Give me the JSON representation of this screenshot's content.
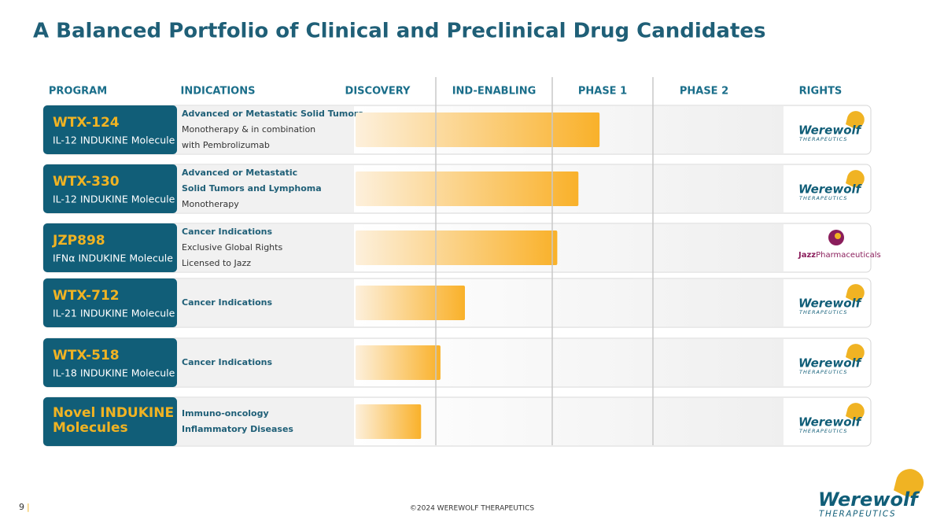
{
  "header": {
    "title": "A Balanced Portfolio of Clinical and Preclinical Drug Candidates"
  },
  "columns": [
    "PROGRAM",
    "INDICATIONS",
    "DISCOVERY",
    "IND-ENABLING",
    "PHASE 1",
    "PHASE 2",
    "RIGHTS"
  ],
  "rows": [
    {
      "name": [
        "WTX-124"
      ],
      "sub": "IL-12 INDUKINE Molecule",
      "indications": [
        {
          "text": "Advanced or Metastatic Solid Tumors",
          "bold": true
        },
        {
          "text": "Monotherapy & in combination",
          "bold": false
        },
        {
          "text": "with Pembrolizumab",
          "bold": false
        }
      ],
      "progress": 2.47,
      "rights": {
        "logo": "werewolf",
        "name": "Werewolf",
        "sub": "THERAPEUTICS"
      }
    },
    {
      "name": [
        "WTX-330"
      ],
      "sub": "IL-12 INDUKINE Molecule",
      "indications": [
        {
          "text": "Advanced or Metastatic",
          "bold": true
        },
        {
          "text": "Solid Tumors and Lymphoma",
          "bold": true
        },
        {
          "text": "Monotherapy",
          "bold": false
        }
      ],
      "progress": 2.26,
      "rights": {
        "logo": "werewolf",
        "name": "Werewolf",
        "sub": "THERAPEUTICS"
      }
    },
    {
      "name": [
        "JZP898"
      ],
      "sub": "IFNα INDUKINE Molecule",
      "indications": [
        {
          "text": "Cancer Indications",
          "bold": true
        },
        {
          "text": "Exclusive Global Rights",
          "bold": false
        },
        {
          "text": "Licensed to Jazz",
          "bold": false
        }
      ],
      "progress": 2.05,
      "rights": {
        "logo": "jazz",
        "name": "Jazz",
        "sub": "Pharmaceuticals"
      }
    },
    {
      "name": [
        "WTX-712"
      ],
      "sub": "IL-21 INDUKINE Molecule",
      "indications": [
        {
          "text": "Cancer Indications",
          "bold": true
        }
      ],
      "progress": 1.25,
      "rights": {
        "logo": "werewolf",
        "name": "Werewolf",
        "sub": "THERAPEUTICS"
      }
    },
    {
      "name": [
        "WTX-518"
      ],
      "sub": "IL-18 INDUKINE Molecule",
      "indications": [
        {
          "text": "Cancer Indications",
          "bold": true
        }
      ],
      "progress": 1.04,
      "rights": {
        "logo": "werewolf",
        "name": "Werewolf",
        "sub": "THERAPEUTICS"
      }
    },
    {
      "name": [
        "Novel INDUKINE",
        "Molecules"
      ],
      "indications": [
        {
          "text": "Immuno-oncology",
          "bold": true
        },
        {
          "text": "Inflammatory Diseases",
          "bold": true
        }
      ],
      "progress": 0.82,
      "rights": {
        "logo": "werewolf",
        "name": "Werewolf",
        "sub": "THERAPEUTICS"
      }
    }
  ],
  "footer": {
    "page": "9",
    "separator": "|",
    "copyright": "©2024 WEREWOLF THERAPEUTICS",
    "logo_name": "Werewolf",
    "logo_sub": "THERAPEUTICS"
  }
}
